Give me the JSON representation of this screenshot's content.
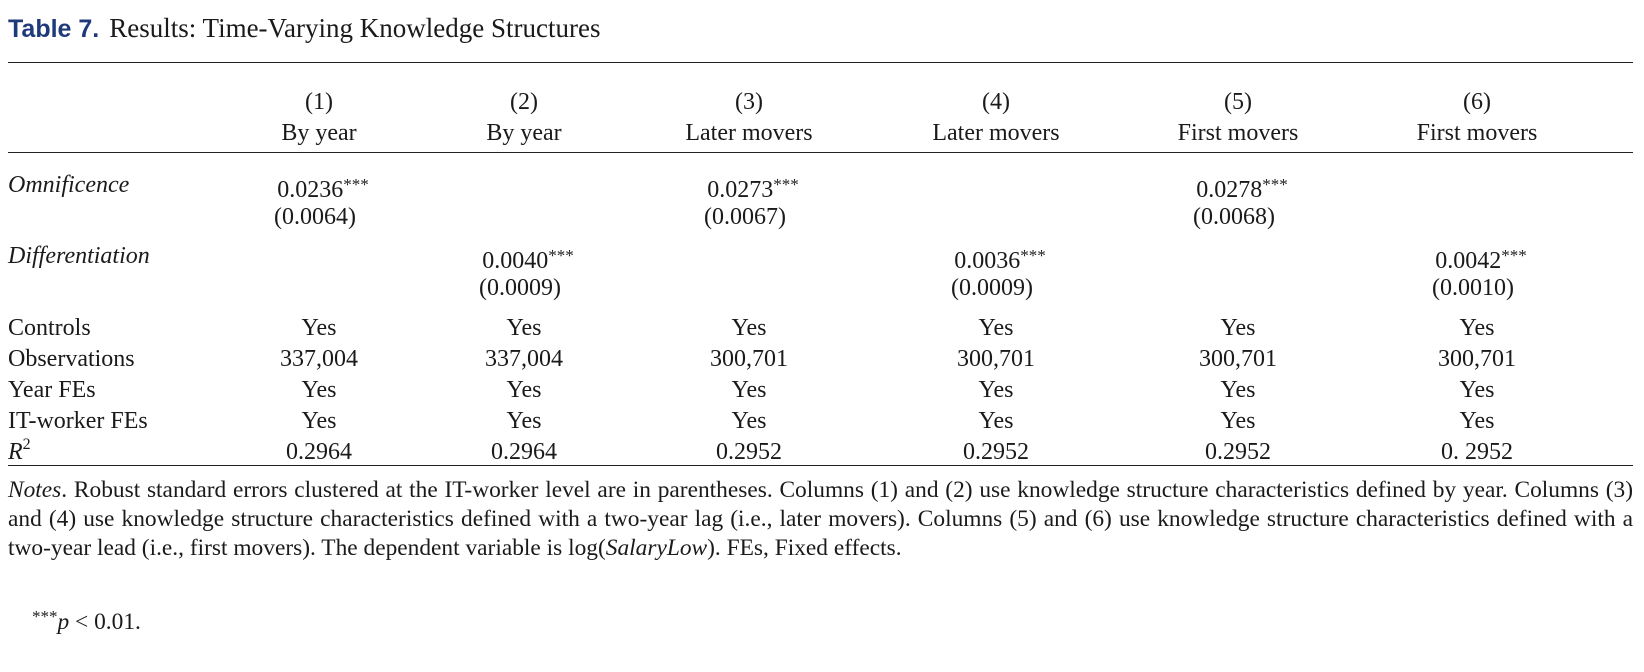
{
  "table": {
    "number": "Table 7.",
    "title": "Results: Time-Varying Knowledge Structures",
    "columns": [
      {
        "num": "(1)",
        "label": "By year"
      },
      {
        "num": "(2)",
        "label": "By year"
      },
      {
        "num": "(3)",
        "label": "Later movers"
      },
      {
        "num": "(4)",
        "label": "Later movers"
      },
      {
        "num": "(5)",
        "label": "First movers"
      },
      {
        "num": "(6)",
        "label": "First movers"
      }
    ],
    "omnificence": {
      "label": "Omnificence",
      "coef": [
        "0.0236",
        "0.0273",
        "0.0278"
      ],
      "se": [
        "(0.0064)",
        "(0.0067)",
        "(0.0068)"
      ],
      "stars": "***"
    },
    "differentiation": {
      "label": "Differentiation",
      "coef": [
        "0.0040",
        "0.0036",
        "0.0042"
      ],
      "se": [
        "(0.0009)",
        "(0.0009)",
        "(0.0010)"
      ],
      "stars": "***"
    },
    "rows": [
      {
        "label": "Controls",
        "values": [
          "Yes",
          "Yes",
          "Yes",
          "Yes",
          "Yes",
          "Yes"
        ]
      },
      {
        "label": "Observations",
        "values": [
          "337,004",
          "337,004",
          "300,701",
          "300,701",
          "300,701",
          "300,701"
        ]
      },
      {
        "label": "Year FEs",
        "values": [
          "Yes",
          "Yes",
          "Yes",
          "Yes",
          "Yes",
          "Yes"
        ]
      },
      {
        "label": "IT-worker FEs",
        "values": [
          "Yes",
          "Yes",
          "Yes",
          "Yes",
          "Yes",
          "Yes"
        ]
      }
    ],
    "r2": {
      "label": "R",
      "sup": "2",
      "values": [
        "0.2964",
        "0.2964",
        "0.2952",
        "0.2952",
        "0.2952",
        "0. 2952"
      ]
    },
    "notes": {
      "lead": "Notes",
      "text_1": ". Robust standard errors clustered at the IT-worker level are in parentheses. Columns (1) and (2) use knowledge structure characteristics defined by year. Columns (3) and (4) use knowledge structure characteristics defined with a two-year lag (i.e., later movers). Columns (5) and (6) use knowledge structure characteristics defined with a two-year lead (i.e., first movers). The dependent variable is log(",
      "italic_var": "SalaryLow",
      "text_2": "). FEs, Fixed effects.",
      "p_stars": "***",
      "p_symbol": "p",
      "p_text": " < 0.01."
    }
  }
}
